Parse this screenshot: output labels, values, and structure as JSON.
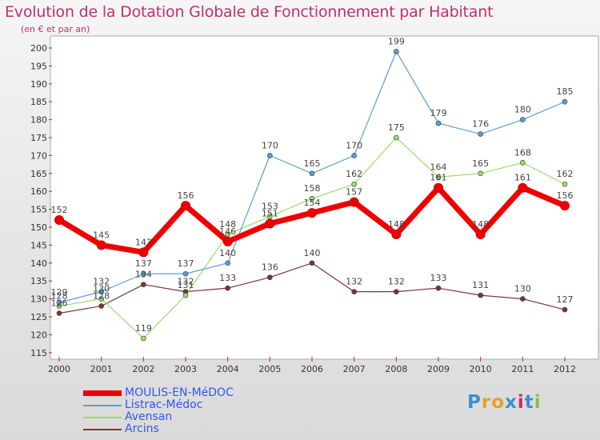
{
  "header": {
    "title": "Evolution de la Dotation Globale de Fonctionnement par Habitant",
    "subtitle": "(en € et par an)"
  },
  "logo": {
    "text": "Proxiti"
  },
  "chart_data": {
    "type": "line",
    "title": "Evolution de la Dotation Globale de Fonctionnement par Habitant",
    "subtitle": "(en € et par an)",
    "xlabel": "",
    "ylabel": "",
    "ylim": [
      113,
      203
    ],
    "yticks": [
      115,
      120,
      125,
      130,
      135,
      140,
      145,
      150,
      155,
      160,
      165,
      170,
      175,
      180,
      185,
      190,
      195,
      200
    ],
    "grid": false,
    "legend": "bottom-left",
    "x": [
      "2000",
      "2001",
      "2002",
      "2003",
      "2004",
      "2005",
      "2006",
      "2007",
      "2008",
      "2009",
      "2010",
      "2011",
      "2012"
    ],
    "series": [
      {
        "name": "MOULIS-EN-MéDOC",
        "color": "#ee0000",
        "width": 7,
        "values": [
          152,
          145,
          143,
          156,
          146,
          151,
          154,
          157,
          148,
          161,
          148,
          161,
          156
        ],
        "labels": [
          "152",
          "145",
          "143",
          "156",
          "146",
          "151",
          "154",
          "157",
          "148",
          "161",
          "148",
          "161",
          "156"
        ]
      },
      {
        "name": "Listrac-Médoc",
        "color": "#5a9ed6",
        "width": 1.2,
        "values": [
          129,
          132,
          137,
          137,
          140,
          170,
          165,
          170,
          199,
          179,
          176,
          180,
          185
        ],
        "labels": [
          "129",
          "132",
          "137",
          "137",
          "140",
          "170",
          "165",
          "170",
          "199",
          "179",
          "176",
          "180",
          "185"
        ]
      },
      {
        "name": "Avensan",
        "color": "#99dd66",
        "width": 1.2,
        "values": [
          128,
          130,
          119,
          131,
          148,
          153,
          158,
          162,
          175,
          164,
          165,
          168,
          162
        ],
        "labels": [
          "128",
          "130",
          "119",
          "131",
          "148",
          "153",
          "158",
          "162",
          "175",
          "164",
          "165",
          "168",
          "162"
        ]
      },
      {
        "name": "Arcins",
        "color": "#7a3535",
        "width": 1.2,
        "values": [
          126,
          128,
          134,
          132,
          133,
          136,
          140,
          132,
          132,
          133,
          131,
          130,
          127
        ],
        "labels": [
          "126",
          "128",
          "134",
          "132",
          "133",
          "136",
          "140",
          "132",
          "132",
          "133",
          "131",
          "130",
          "127"
        ]
      }
    ]
  }
}
